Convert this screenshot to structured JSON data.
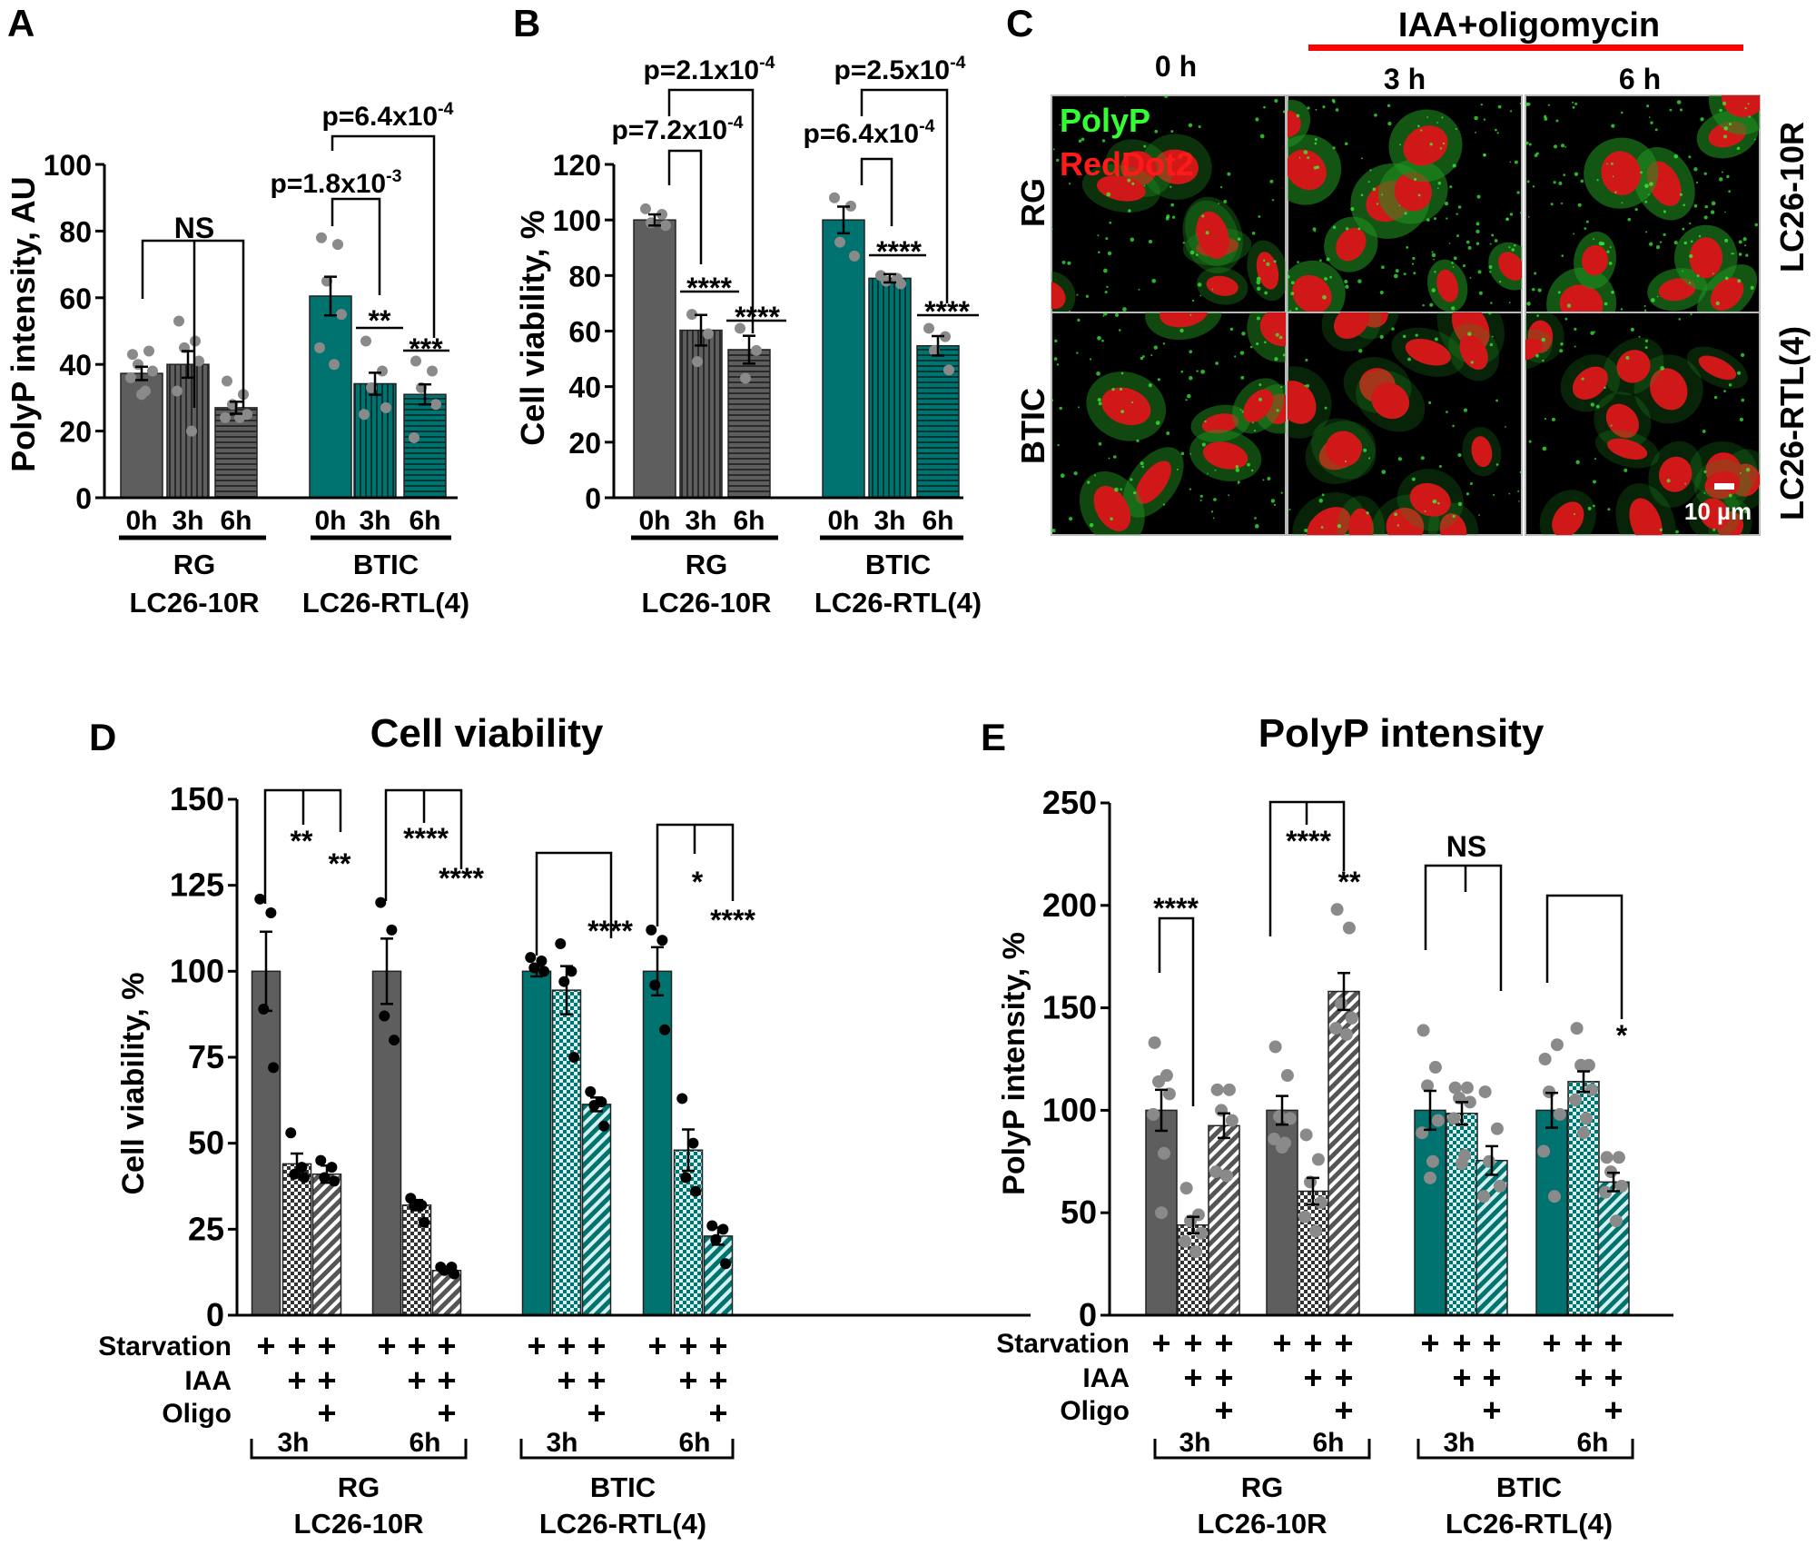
{
  "colors": {
    "gray": "#5e5e5e",
    "teal": "#007370",
    "dot_gray": "#8a8a8a",
    "dot_black": "#000000",
    "red_bar": "#ff0000",
    "polyp_green": "#33ff33",
    "reddot_red": "#ff1a1a"
  },
  "panel_letters": [
    "A",
    "B",
    "C",
    "D",
    "E"
  ],
  "panel_c": {
    "treatment": "IAA+oligomycin",
    "times": [
      "0 h",
      "3 h",
      "6 h"
    ],
    "legend": {
      "polyp": "PolyP",
      "reddot": "RedDot2"
    },
    "rows": [
      {
        "cell": "RG",
        "line": "LC26-10R"
      },
      {
        "cell": "BTIC",
        "line": "LC26-RTL(4)"
      }
    ],
    "scale_bar": "10 µm"
  },
  "chart_data": [
    {
      "type": "bar",
      "panel": "A",
      "title": "",
      "ylabel": "PolyP intensity, AU",
      "ylim": [
        0,
        100
      ],
      "y_ticks": [
        0,
        20,
        40,
        60,
        80,
        100
      ],
      "groups": [
        {
          "cell": "RG",
          "line": "LC26-10R",
          "color": "gray",
          "bars": [
            {
              "category": "0h",
              "value": 37.3,
              "sem": 2.0,
              "pattern": "solid",
              "points": [
                43,
                44,
                40,
                38,
                36,
                32,
                31
              ]
            },
            {
              "category": "3h",
              "value": 40.0,
              "sem": 4.0,
              "pattern": "vertical-stripes",
              "points": [
                53,
                47,
                45,
                41,
                32,
                20
              ]
            },
            {
              "category": "6h",
              "value": 27.0,
              "sem": 1.8,
              "pattern": "horizontal-stripes",
              "points": [
                35,
                31,
                28,
                25,
                24,
                24
              ]
            }
          ]
        },
        {
          "cell": "BTIC",
          "line": "LC26-RTL(4)",
          "color": "teal",
          "bars": [
            {
              "category": "0h",
              "value": 60.5,
              "sem": 5.8,
              "pattern": "solid",
              "points": [
                78,
                76,
                65,
                55,
                45,
                40
              ]
            },
            {
              "category": "3h",
              "value": 34.2,
              "sem": 3.3,
              "pattern": "vertical-stripes",
              "points": [
                47,
                38,
                33,
                27,
                25
              ]
            },
            {
              "category": "6h",
              "value": 31.0,
              "sem": 3.0,
              "pattern": "horizontal-stripes",
              "points": [
                41,
                38,
                33,
                28,
                18
              ]
            }
          ]
        }
      ],
      "annotations": [
        "NS",
        {
          "base": "p=1.8x10",
          "exp": "-3"
        },
        {
          "base": "p=6.4x10",
          "exp": "-4"
        },
        "**",
        "***"
      ]
    },
    {
      "type": "bar",
      "panel": "B",
      "title": "",
      "ylabel": "Cell viability, %",
      "ylim": [
        0,
        120
      ],
      "y_ticks": [
        0,
        20,
        40,
        60,
        80,
        100,
        120
      ],
      "groups": [
        {
          "cell": "RG",
          "line": "LC26-10R",
          "color": "gray",
          "bars": [
            {
              "category": "0h",
              "value": 100,
              "sem": 2.0,
              "pattern": "solid",
              "points": [
                104,
                102,
                99,
                98
              ]
            },
            {
              "category": "3h",
              "value": 60.3,
              "sem": 5.5,
              "pattern": "vertical-stripes",
              "points": [
                66,
                59,
                49
              ]
            },
            {
              "category": "6h",
              "value": 53.3,
              "sem": 5.0,
              "pattern": "horizontal-stripes",
              "points": [
                61,
                53,
                43
              ]
            }
          ]
        },
        {
          "cell": "BTIC",
          "line": "LC26-RTL(4)",
          "color": "teal",
          "bars": [
            {
              "category": "0h",
              "value": 100,
              "sem": 4.8,
              "pattern": "solid",
              "points": [
                108,
                105,
                92,
                87
              ]
            },
            {
              "category": "3h",
              "value": 79.0,
              "sem": 1.5,
              "pattern": "vertical-stripes",
              "points": [
                80,
                79,
                78,
                77
              ]
            },
            {
              "category": "6h",
              "value": 54.7,
              "sem": 3.5,
              "pattern": "horizontal-stripes",
              "points": [
                61,
                58,
                53,
                46
              ]
            }
          ]
        }
      ],
      "annotations": [
        {
          "base": "p=2.1x10",
          "exp": "-4"
        },
        {
          "base": "p=7.2x10",
          "exp": "-4"
        },
        "****",
        "****",
        {
          "base": "p=2.5x10",
          "exp": "-4"
        },
        {
          "base": "p=6.4x10",
          "exp": "-4"
        },
        "****",
        "****"
      ]
    },
    {
      "type": "bar",
      "panel": "D",
      "title": "Cell viability",
      "ylabel": "Cell viability, %",
      "ylim": [
        0,
        150
      ],
      "y_ticks": [
        0,
        25,
        50,
        75,
        100,
        125,
        150
      ],
      "treatment_rows": [
        {
          "label": "Starvation",
          "marks": [
            "+",
            "+",
            "+",
            "+",
            "+",
            "+",
            "+",
            "+",
            "+",
            "+",
            "+",
            "+"
          ]
        },
        {
          "label": "IAA",
          "marks": [
            "",
            "+",
            "+",
            "",
            "+",
            "+",
            "",
            "+",
            "+",
            "",
            "+",
            "+"
          ]
        },
        {
          "label": "Oligo",
          "marks": [
            "",
            "",
            "+",
            "",
            "",
            "+",
            "",
            "",
            "+",
            "",
            "",
            "+"
          ]
        }
      ],
      "groups": [
        {
          "cell": "RG",
          "line": "LC26-10R",
          "color": "gray",
          "times": [
            {
              "time": "3h",
              "bars": [
                {
                  "condition": "Starvation",
                  "value": 100,
                  "sem": 11.5,
                  "pattern": "solid",
                  "points": [
                    121,
                    117,
                    89,
                    72
                  ]
                },
                {
                  "condition": "Starvation+IAA",
                  "value": 44,
                  "sem": 3.0,
                  "pattern": "checker",
                  "points": [
                    53,
                    43,
                    41,
                    40
                  ]
                },
                {
                  "condition": "Starvation+IAA+Oligo",
                  "value": 41,
                  "sem": 2.5,
                  "pattern": "diagonal",
                  "points": [
                    45,
                    43,
                    40,
                    39
                  ]
                }
              ]
            },
            {
              "time": "6h",
              "bars": [
                {
                  "condition": "Starvation",
                  "value": 100,
                  "sem": 9.5,
                  "pattern": "solid",
                  "points": [
                    120,
                    112,
                    87,
                    80
                  ]
                },
                {
                  "condition": "Starvation+IAA",
                  "value": 32,
                  "sem": 1.5,
                  "pattern": "checker",
                  "points": [
                    34,
                    32,
                    32,
                    27
                  ]
                },
                {
                  "condition": "Starvation+IAA+Oligo",
                  "value": 13,
                  "sem": 0.8,
                  "pattern": "diagonal",
                  "points": [
                    14,
                    14,
                    13,
                    12
                  ]
                }
              ]
            }
          ]
        },
        {
          "cell": "BTIC",
          "line": "LC26-RTL(4)",
          "color": "teal",
          "times": [
            {
              "time": "3h",
              "bars": [
                {
                  "condition": "Starvation",
                  "value": 100,
                  "sem": 1.5,
                  "pattern": "solid",
                  "points": [
                    104,
                    103,
                    101,
                    100
                  ]
                },
                {
                  "condition": "Starvation+IAA",
                  "value": 94.5,
                  "sem": 7.0,
                  "pattern": "checker",
                  "points": [
                    108,
                    100,
                    97,
                    75
                  ]
                },
                {
                  "condition": "Starvation+IAA+Oligo",
                  "value": 61.3,
                  "sem": 2.0,
                  "pattern": "diagonal",
                  "points": [
                    65,
                    62,
                    61,
                    55
                  ]
                }
              ]
            },
            {
              "time": "6h",
              "bars": [
                {
                  "condition": "Starvation",
                  "value": 100,
                  "sem": 7.0,
                  "pattern": "solid",
                  "points": [
                    112,
                    109,
                    96,
                    83
                  ]
                },
                {
                  "condition": "Starvation+IAA",
                  "value": 48,
                  "sem": 6.0,
                  "pattern": "checker",
                  "points": [
                    63,
                    50,
                    40,
                    36
                  ]
                },
                {
                  "condition": "Starvation+IAA+Oligo",
                  "value": 23,
                  "sem": 2.5,
                  "pattern": "diagonal",
                  "points": [
                    26,
                    25,
                    22,
                    15
                  ]
                }
              ]
            }
          ]
        }
      ],
      "annotations": [
        "**",
        "**",
        "****",
        "****",
        "****",
        "*",
        "****"
      ]
    },
    {
      "type": "bar",
      "panel": "E",
      "title": "PolyP intensity",
      "ylabel": "PolyP intensity, %",
      "ylim": [
        0,
        250
      ],
      "y_ticks": [
        0,
        50,
        100,
        150,
        200,
        250
      ],
      "treatment_rows": [
        {
          "label": "Starvation",
          "marks": [
            "+",
            "+",
            "+",
            "+",
            "+",
            "+",
            "+",
            "+",
            "+",
            "+",
            "+",
            "+"
          ]
        },
        {
          "label": "IAA",
          "marks": [
            "",
            "+",
            "+",
            "",
            "+",
            "+",
            "",
            "+",
            "+",
            "",
            "+",
            "+"
          ]
        },
        {
          "label": "Oligo",
          "marks": [
            "",
            "",
            "+",
            "",
            "",
            "+",
            "",
            "",
            "+",
            "",
            "",
            "+"
          ]
        }
      ],
      "groups": [
        {
          "cell": "RG",
          "line": "LC26-10R",
          "color": "gray",
          "times": [
            {
              "time": "3h",
              "bars": [
                {
                  "condition": "Starvation",
                  "value": 100,
                  "sem": 10,
                  "pattern": "solid",
                  "points": [
                    133,
                    117,
                    114,
                    108,
                    98,
                    79,
                    50
                  ]
                },
                {
                  "condition": "Starvation+IAA",
                  "value": 44,
                  "sem": 4,
                  "pattern": "checker",
                  "points": [
                    62,
                    49,
                    46,
                    40,
                    36,
                    31
                  ]
                },
                {
                  "condition": "Starvation+IAA+Oligo",
                  "value": 92.5,
                  "sem": 6,
                  "pattern": "diagonal",
                  "points": [
                    110,
                    110,
                    100,
                    95,
                    70,
                    68
                  ]
                }
              ]
            },
            {
              "time": "6h",
              "bars": [
                {
                  "condition": "Starvation",
                  "value": 100,
                  "sem": 7,
                  "pattern": "solid",
                  "points": [
                    131,
                    117,
                    97,
                    96,
                    86,
                    84,
                    82
                  ]
                },
                {
                  "condition": "Starvation+IAA",
                  "value": 60.5,
                  "sem": 6.5,
                  "pattern": "checker",
                  "points": [
                    88,
                    76,
                    65,
                    55,
                    48,
                    41
                  ]
                },
                {
                  "condition": "Starvation+IAA+Oligo",
                  "value": 158,
                  "sem": 9,
                  "pattern": "diagonal",
                  "points": [
                    198,
                    189,
                    152,
                    145,
                    140,
                    137
                  ]
                }
              ]
            }
          ]
        },
        {
          "cell": "BTIC",
          "line": "LC26-RTL(4)",
          "color": "teal",
          "times": [
            {
              "time": "3h",
              "bars": [
                {
                  "condition": "Starvation",
                  "value": 100,
                  "sem": 9.5,
                  "pattern": "solid",
                  "points": [
                    139,
                    121,
                    112,
                    95,
                    89,
                    75,
                    67
                  ]
                },
                {
                  "condition": "Starvation+IAA",
                  "value": 98.5,
                  "sem": 5.5,
                  "pattern": "checker",
                  "points": [
                    111,
                    111,
                    106,
                    104,
                    96,
                    78,
                    74
                  ]
                },
                {
                  "condition": "Starvation+IAA+Oligo",
                  "value": 75.5,
                  "sem": 7,
                  "pattern": "diagonal",
                  "points": [
                    109,
                    91,
                    75,
                    63,
                    58
                  ]
                }
              ]
            },
            {
              "time": "6h",
              "bars": [
                {
                  "condition": "Starvation",
                  "value": 100,
                  "sem": 8.5,
                  "pattern": "solid",
                  "points": [
                    125,
                    132,
                    109,
                    98,
                    80,
                    58
                  ]
                },
                {
                  "condition": "Starvation+IAA",
                  "value": 114,
                  "sem": 5,
                  "pattern": "checker",
                  "points": [
                    140,
                    122,
                    122,
                    110,
                    105,
                    96,
                    89
                  ]
                },
                {
                  "condition": "Starvation+IAA+Oligo",
                  "value": 65,
                  "sem": 4.5,
                  "pattern": "diagonal",
                  "points": [
                    77,
                    77,
                    70,
                    63,
                    60,
                    46
                  ]
                }
              ]
            }
          ]
        }
      ],
      "annotations": [
        "****",
        "****",
        "**",
        "NS",
        "*"
      ]
    }
  ]
}
